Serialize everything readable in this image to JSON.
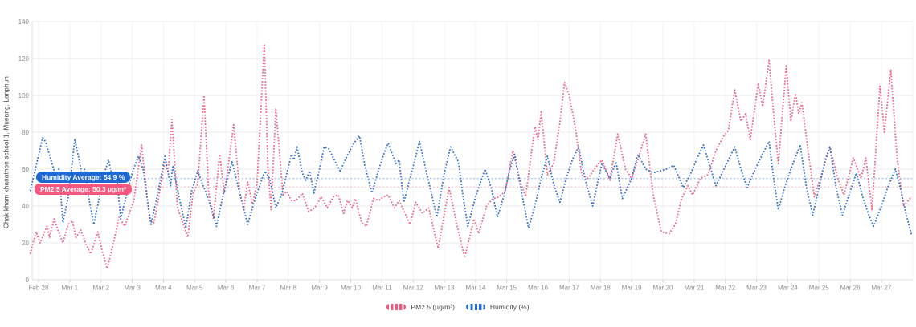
{
  "chart": {
    "y_axis_title": "Chak kham khanathon school 1, Mueang, Lanphun",
    "y_ticks": [
      0,
      20,
      40,
      60,
      80,
      100,
      120,
      140
    ],
    "x_ticks": [
      "Feb 28",
      "Mar 1",
      "Mar 2",
      "Mar 3",
      "Mar 4",
      "Mar 5",
      "Mar 6",
      "Mar 7",
      "Mar 8",
      "Mar 9",
      "Mar 10",
      "Mar 11",
      "Mar 12",
      "Mar 13",
      "Mar 14",
      "Mar 15",
      "Mar 16",
      "Mar 17",
      "Mar 18",
      "Mar 19",
      "Mar 20",
      "Mar 21",
      "Mar 22",
      "Mar 23",
      "Mar 24",
      "Mar 25",
      "Mar 26",
      "Mar 27"
    ],
    "annotations": {
      "humidity_avg": {
        "label": "Humidity Average: 54.9 %",
        "value": 54.9,
        "badge_color": "#1f68d2",
        "line_color": "#8fb4e8"
      },
      "pm25_avg": {
        "label": "PM2.5 Average: 50.3 µg/m³",
        "value": 50.3,
        "badge_color": "#f4587e",
        "line_color": "#f5aec0"
      }
    },
    "legend": [
      {
        "label": "PM2.5 (µg/m³)",
        "color": "#f2547e"
      },
      {
        "label": "Humidity (%)",
        "color": "#2e6fd6"
      }
    ],
    "colors": {
      "pm25_series": "#ee6487",
      "humidity_series": "#3170cf",
      "h_gridline": "#ebebef",
      "v_gridline": "#f3f3f6",
      "axis_line": "#dcdce0",
      "tick_mark": "#cfcfd4",
      "tick_label": "#8f8f96"
    }
  },
  "chart_data": {
    "type": "line",
    "title": "",
    "xlabel": "",
    "ylabel": "Chak kham khanathon school 1, Mueang, Lanphun",
    "ylim": [
      0,
      140
    ],
    "x_unit": "days since Feb 28",
    "grid": true,
    "legend_position": "bottom-center",
    "line_style": "dotted",
    "series": [
      {
        "name": "PM2.5 (µg/m³)",
        "color": "#ee6487",
        "points": [
          [
            -0.27,
            14
          ],
          [
            -0.08,
            26
          ],
          [
            0.05,
            20
          ],
          [
            0.27,
            29
          ],
          [
            0.35,
            23
          ],
          [
            0.5,
            33
          ],
          [
            0.62,
            27
          ],
          [
            0.78,
            20
          ],
          [
            0.95,
            30
          ],
          [
            1.08,
            32
          ],
          [
            1.2,
            23
          ],
          [
            1.35,
            27
          ],
          [
            1.5,
            20
          ],
          [
            1.67,
            14
          ],
          [
            1.9,
            26
          ],
          [
            2.05,
            15
          ],
          [
            2.2,
            6
          ],
          [
            2.4,
            20
          ],
          [
            2.58,
            34
          ],
          [
            2.76,
            29
          ],
          [
            3.05,
            43
          ],
          [
            3.3,
            73
          ],
          [
            3.45,
            50
          ],
          [
            3.55,
            33
          ],
          [
            3.7,
            31
          ],
          [
            3.85,
            45
          ],
          [
            4.05,
            65
          ],
          [
            4.15,
            58
          ],
          [
            4.27,
            87
          ],
          [
            4.45,
            39
          ],
          [
            4.6,
            32
          ],
          [
            4.78,
            23
          ],
          [
            4.95,
            47
          ],
          [
            5.1,
            52
          ],
          [
            5.3,
            100
          ],
          [
            5.45,
            47
          ],
          [
            5.6,
            33
          ],
          [
            5.8,
            68
          ],
          [
            5.95,
            47
          ],
          [
            6.1,
            65
          ],
          [
            6.25,
            84
          ],
          [
            6.45,
            47
          ],
          [
            6.57,
            38
          ],
          [
            6.7,
            53
          ],
          [
            6.85,
            41
          ],
          [
            7.0,
            52
          ],
          [
            7.23,
            128
          ],
          [
            7.35,
            60
          ],
          [
            7.45,
            38
          ],
          [
            7.6,
            93
          ],
          [
            7.83,
            46
          ],
          [
            7.95,
            48
          ],
          [
            8.1,
            43
          ],
          [
            8.25,
            43
          ],
          [
            8.45,
            47
          ],
          [
            8.65,
            37
          ],
          [
            8.85,
            39
          ],
          [
            9.05,
            45
          ],
          [
            9.25,
            39
          ],
          [
            9.45,
            45
          ],
          [
            9.6,
            46
          ],
          [
            9.77,
            36
          ],
          [
            9.9,
            43
          ],
          [
            10.05,
            39
          ],
          [
            10.15,
            44
          ],
          [
            10.35,
            31
          ],
          [
            10.5,
            29
          ],
          [
            10.73,
            44
          ],
          [
            10.9,
            43
          ],
          [
            11.05,
            45
          ],
          [
            11.2,
            46
          ],
          [
            11.4,
            39
          ],
          [
            11.55,
            43
          ],
          [
            11.9,
            30
          ],
          [
            12.08,
            42
          ],
          [
            12.3,
            36
          ],
          [
            12.5,
            39
          ],
          [
            12.8,
            17
          ],
          [
            13.15,
            50
          ],
          [
            13.4,
            30
          ],
          [
            13.65,
            12
          ],
          [
            13.95,
            33
          ],
          [
            14.1,
            25
          ],
          [
            14.35,
            40
          ],
          [
            14.55,
            44
          ],
          [
            14.75,
            45
          ],
          [
            14.95,
            48
          ],
          [
            15.2,
            70
          ],
          [
            15.4,
            55
          ],
          [
            15.6,
            45
          ],
          [
            15.9,
            83
          ],
          [
            16.0,
            76
          ],
          [
            16.1,
            91
          ],
          [
            16.3,
            57
          ],
          [
            16.5,
            63
          ],
          [
            16.7,
            85
          ],
          [
            16.85,
            107
          ],
          [
            17.0,
            100
          ],
          [
            17.2,
            82
          ],
          [
            17.4,
            57
          ],
          [
            17.6,
            55
          ],
          [
            17.8,
            60
          ],
          [
            18.05,
            65
          ],
          [
            18.3,
            54
          ],
          [
            18.55,
            79
          ],
          [
            18.8,
            60
          ],
          [
            19.0,
            55
          ],
          [
            19.2,
            65
          ],
          [
            19.45,
            79
          ],
          [
            19.7,
            45
          ],
          [
            19.95,
            26
          ],
          [
            20.2,
            25
          ],
          [
            20.4,
            30
          ],
          [
            20.6,
            44
          ],
          [
            20.8,
            51
          ],
          [
            20.95,
            46
          ],
          [
            21.2,
            55
          ],
          [
            21.45,
            57
          ],
          [
            21.7,
            70
          ],
          [
            21.95,
            78
          ],
          [
            22.1,
            81
          ],
          [
            22.3,
            103
          ],
          [
            22.5,
            86
          ],
          [
            22.65,
            90
          ],
          [
            22.8,
            76
          ],
          [
            23.05,
            106
          ],
          [
            23.2,
            94
          ],
          [
            23.4,
            119
          ],
          [
            23.6,
            80
          ],
          [
            23.7,
            63
          ],
          [
            23.95,
            116
          ],
          [
            24.1,
            86
          ],
          [
            24.25,
            101
          ],
          [
            24.35,
            90
          ],
          [
            24.45,
            96
          ],
          [
            24.65,
            70
          ],
          [
            24.85,
            45
          ],
          [
            25.1,
            58
          ],
          [
            25.35,
            72
          ],
          [
            25.6,
            55
          ],
          [
            25.8,
            46
          ],
          [
            26.1,
            66
          ],
          [
            26.35,
            55
          ],
          [
            26.5,
            66
          ],
          [
            26.7,
            38
          ],
          [
            26.95,
            105
          ],
          [
            27.1,
            80
          ],
          [
            27.3,
            114
          ],
          [
            27.5,
            66
          ],
          [
            27.7,
            40
          ],
          [
            27.97,
            45
          ]
        ]
      },
      {
        "name": "Humidity (%)",
        "color": "#3170cf",
        "points": [
          [
            -0.27,
            48
          ],
          [
            0.13,
            77
          ],
          [
            0.22,
            75
          ],
          [
            0.45,
            62
          ],
          [
            0.57,
            55
          ],
          [
            0.65,
            60
          ],
          [
            0.78,
            31
          ],
          [
            0.95,
            45
          ],
          [
            1.16,
            76
          ],
          [
            1.3,
            65
          ],
          [
            1.4,
            56
          ],
          [
            1.47,
            60
          ],
          [
            1.6,
            45
          ],
          [
            1.77,
            30
          ],
          [
            1.95,
            45
          ],
          [
            2.1,
            57
          ],
          [
            2.24,
            65
          ],
          [
            2.4,
            53
          ],
          [
            2.5,
            57
          ],
          [
            2.63,
            33
          ],
          [
            2.8,
            45
          ],
          [
            3.0,
            58
          ],
          [
            3.2,
            67
          ],
          [
            3.35,
            60
          ],
          [
            3.6,
            30
          ],
          [
            3.8,
            45
          ],
          [
            4.05,
            67
          ],
          [
            4.23,
            51
          ],
          [
            4.3,
            62
          ],
          [
            4.5,
            45
          ],
          [
            4.72,
            28
          ],
          [
            4.9,
            48
          ],
          [
            5.1,
            59
          ],
          [
            5.25,
            52
          ],
          [
            5.35,
            48
          ],
          [
            5.55,
            38
          ],
          [
            5.7,
            29
          ],
          [
            5.9,
            45
          ],
          [
            6.05,
            55
          ],
          [
            6.2,
            64
          ],
          [
            6.4,
            50
          ],
          [
            6.55,
            40
          ],
          [
            6.7,
            30
          ],
          [
            6.9,
            42
          ],
          [
            7.1,
            52
          ],
          [
            7.25,
            59
          ],
          [
            7.4,
            55
          ],
          [
            7.6,
            39
          ],
          [
            7.8,
            47
          ],
          [
            8.1,
            68
          ],
          [
            8.18,
            65
          ],
          [
            8.28,
            72
          ],
          [
            8.45,
            58
          ],
          [
            8.56,
            54
          ],
          [
            8.68,
            59
          ],
          [
            8.82,
            47
          ],
          [
            9.0,
            60
          ],
          [
            9.15,
            72
          ],
          [
            9.3,
            71
          ],
          [
            9.5,
            64
          ],
          [
            9.66,
            59
          ],
          [
            9.85,
            66
          ],
          [
            10.1,
            74
          ],
          [
            10.28,
            78
          ],
          [
            10.45,
            62
          ],
          [
            10.68,
            47
          ],
          [
            10.9,
            60
          ],
          [
            11.1,
            70
          ],
          [
            11.2,
            74
          ],
          [
            11.45,
            63
          ],
          [
            11.55,
            65
          ],
          [
            11.7,
            42
          ],
          [
            11.9,
            55
          ],
          [
            12.1,
            68
          ],
          [
            12.2,
            75
          ],
          [
            12.5,
            53
          ],
          [
            12.76,
            34
          ],
          [
            13.0,
            58
          ],
          [
            13.2,
            72
          ],
          [
            13.45,
            64
          ],
          [
            13.6,
            45
          ],
          [
            13.75,
            29
          ],
          [
            14.0,
            45
          ],
          [
            14.3,
            60
          ],
          [
            14.5,
            50
          ],
          [
            14.7,
            34
          ],
          [
            14.9,
            45
          ],
          [
            15.1,
            60
          ],
          [
            15.25,
            68
          ],
          [
            15.5,
            45
          ],
          [
            15.7,
            28
          ],
          [
            15.9,
            40
          ],
          [
            16.1,
            55
          ],
          [
            16.3,
            67
          ],
          [
            16.5,
            52
          ],
          [
            16.7,
            42
          ],
          [
            16.9,
            55
          ],
          [
            17.1,
            65
          ],
          [
            17.3,
            72
          ],
          [
            17.5,
            55
          ],
          [
            17.75,
            40
          ],
          [
            17.9,
            52
          ],
          [
            18.05,
            63
          ],
          [
            18.3,
            55
          ],
          [
            18.5,
            64
          ],
          [
            18.7,
            44
          ],
          [
            19.0,
            55
          ],
          [
            19.2,
            68
          ],
          [
            19.45,
            60
          ],
          [
            19.7,
            58
          ],
          [
            19.9,
            59
          ],
          [
            20.1,
            60
          ],
          [
            20.35,
            62
          ],
          [
            20.65,
            50
          ],
          [
            20.9,
            58
          ],
          [
            21.1,
            66
          ],
          [
            21.3,
            73
          ],
          [
            21.5,
            62
          ],
          [
            21.7,
            51
          ],
          [
            21.9,
            58
          ],
          [
            22.1,
            65
          ],
          [
            22.3,
            72
          ],
          [
            22.5,
            60
          ],
          [
            22.7,
            50
          ],
          [
            22.9,
            58
          ],
          [
            23.1,
            65
          ],
          [
            23.4,
            75
          ],
          [
            23.55,
            55
          ],
          [
            23.7,
            38
          ],
          [
            23.9,
            50
          ],
          [
            24.1,
            60
          ],
          [
            24.4,
            73
          ],
          [
            24.6,
            50
          ],
          [
            24.8,
            35
          ],
          [
            25.0,
            50
          ],
          [
            25.2,
            65
          ],
          [
            25.35,
            72
          ],
          [
            25.55,
            50
          ],
          [
            25.75,
            35
          ],
          [
            26.0,
            48
          ],
          [
            26.2,
            58
          ],
          [
            26.4,
            45
          ],
          [
            26.6,
            35
          ],
          [
            26.75,
            29
          ],
          [
            27.0,
            40
          ],
          [
            27.2,
            50
          ],
          [
            27.45,
            60
          ],
          [
            27.6,
            50
          ],
          [
            27.8,
            35
          ],
          [
            27.97,
            24
          ]
        ]
      }
    ]
  }
}
